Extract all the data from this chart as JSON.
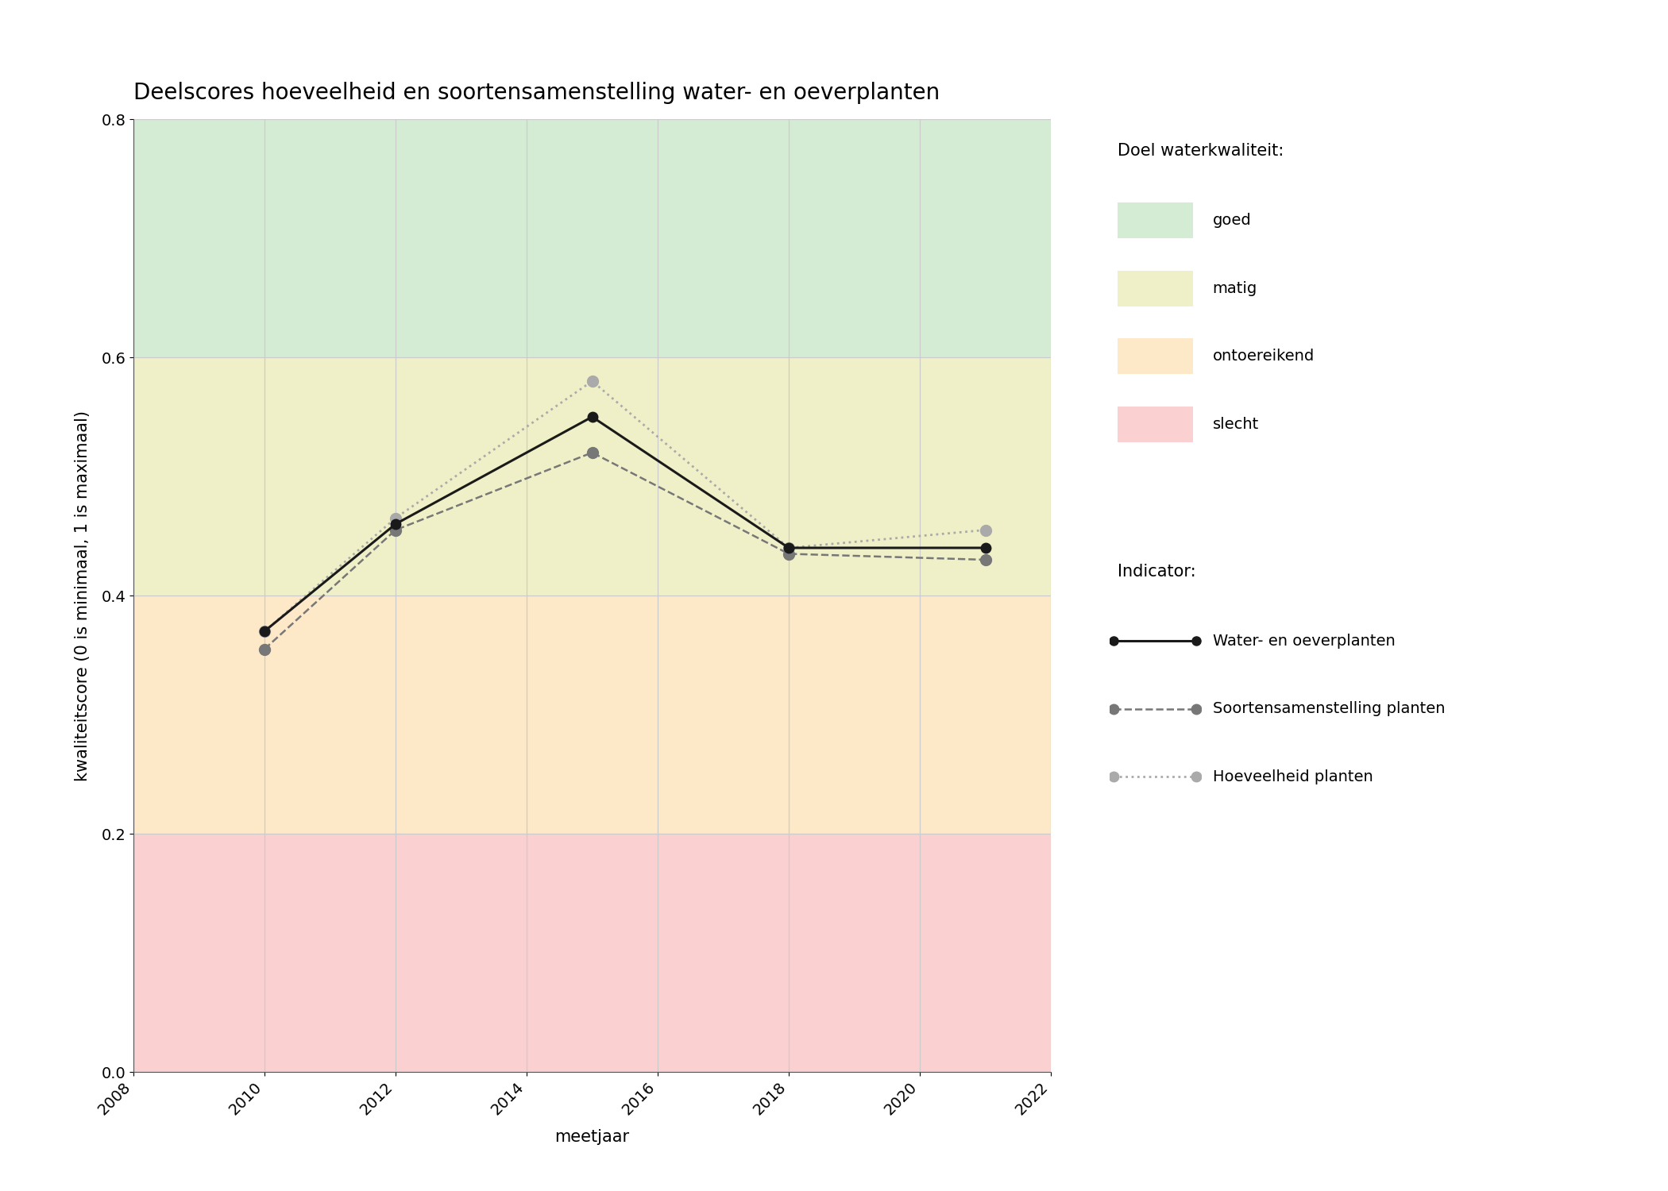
{
  "title": "Deelscores hoeveelheid en soortensamenstelling water- en oeverplanten",
  "xlabel": "meetjaar",
  "ylabel": "kwaliteitscore (0 is minimaal, 1 is maximaal)",
  "xlim": [
    2008,
    2022
  ],
  "ylim": [
    0.0,
    0.8
  ],
  "xticks": [
    2008,
    2010,
    2012,
    2014,
    2016,
    2018,
    2020,
    2022
  ],
  "yticks": [
    0.0,
    0.2,
    0.4,
    0.6,
    0.8
  ],
  "bg_colors": {
    "goed": {
      "color": "#d5ecd4",
      "ymin": 0.6,
      "ymax": 0.8,
      "label": "goed"
    },
    "matig": {
      "color": "#f0f0c8",
      "ymin": 0.4,
      "ymax": 0.6,
      "label": "matig"
    },
    "ontoereikend": {
      "color": "#fde8c8",
      "ymin": 0.2,
      "ymax": 0.4,
      "label": "ontoereikend"
    },
    "slecht": {
      "color": "#fad0d0",
      "ymin": 0.0,
      "ymax": 0.2,
      "label": "slecht"
    }
  },
  "series": [
    {
      "key": "water_en_oeverplanten",
      "years": [
        2010,
        2012,
        2015,
        2018,
        2021
      ],
      "values": [
        0.37,
        0.46,
        0.55,
        0.44,
        0.44
      ],
      "color": "#1a1a1a",
      "linestyle": "solid",
      "linewidth": 2.2,
      "marker": "o",
      "markersize": 9,
      "label": "Water- en oeverplanten",
      "zorder": 5
    },
    {
      "key": "soortensamenstelling",
      "years": [
        2010,
        2012,
        2015,
        2018,
        2021
      ],
      "values": [
        0.355,
        0.455,
        0.52,
        0.435,
        0.43
      ],
      "color": "#777777",
      "linestyle": "dashed",
      "linewidth": 1.8,
      "marker": "o",
      "markersize": 10,
      "label": "Soortensamenstelling planten",
      "zorder": 4
    },
    {
      "key": "hoeveelheid",
      "years": [
        2010,
        2012,
        2015,
        2018,
        2021
      ],
      "values": [
        0.37,
        0.465,
        0.58,
        0.44,
        0.455
      ],
      "color": "#aaaaaa",
      "linestyle": "dotted",
      "linewidth": 2.0,
      "marker": "o",
      "markersize": 10,
      "label": "Hoeveelheid planten",
      "zorder": 3
    }
  ],
  "background_color": "#ffffff",
  "grid_color": "#cccccc",
  "title_fontsize": 20,
  "label_fontsize": 15,
  "tick_fontsize": 14,
  "legend_fontsize": 14,
  "legend_header_fontsize": 15
}
